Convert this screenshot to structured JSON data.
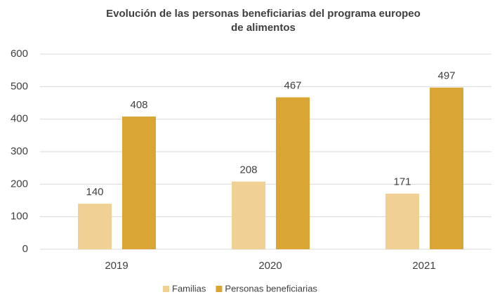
{
  "chart_data": {
    "type": "bar",
    "title": [
      "Evolución  de las personas beneficiarias del programa europeo",
      "de alimentos"
    ],
    "categories": [
      "2019",
      "2020",
      "2021"
    ],
    "series": [
      {
        "name": "Familias",
        "color": "#f0d095",
        "values": [
          140,
          208,
          171
        ]
      },
      {
        "name": "Personas beneficiarias",
        "color": "#d9a535",
        "values": [
          408,
          467,
          497
        ]
      }
    ],
    "ylim": [
      0,
      600
    ],
    "yticks": [
      0,
      100,
      200,
      300,
      400,
      500,
      600
    ],
    "grid": true,
    "legend": "bottom"
  }
}
